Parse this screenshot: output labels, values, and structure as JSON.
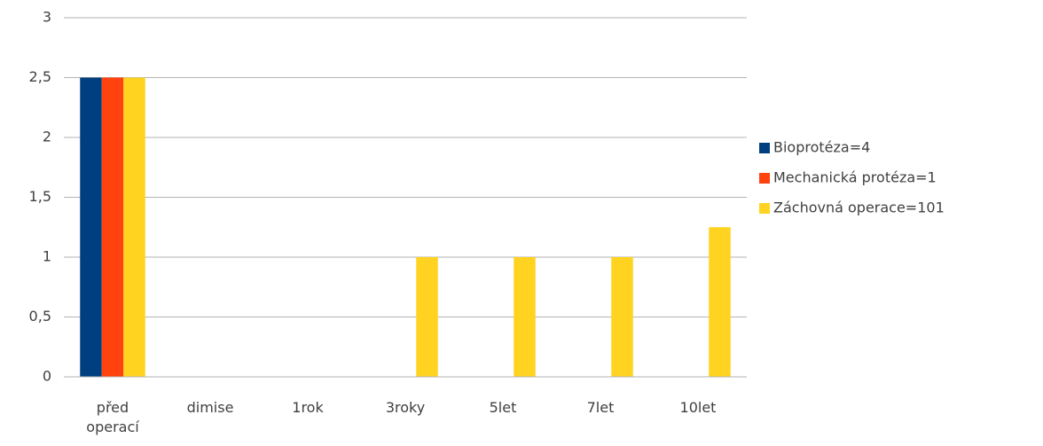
{
  "chart_data": {
    "type": "bar",
    "categories": [
      "před operací",
      "dimise",
      "1rok",
      "3roky",
      "5let",
      "7let",
      "10let"
    ],
    "series": [
      {
        "name": "Bioprotéza=4",
        "color": "#003f7f",
        "values": [
          2.5,
          0,
          0,
          0,
          0,
          0,
          0
        ]
      },
      {
        "name": "Mechanická protéza=1",
        "color": "#ff420e",
        "values": [
          2.5,
          0,
          0,
          0,
          0,
          0,
          0
        ]
      },
      {
        "name": "Záchovná operace=101",
        "color": "#ffd320",
        "values": [
          2.5,
          0,
          0,
          1,
          1,
          1,
          1.25
        ]
      }
    ],
    "ylim": [
      0,
      3
    ],
    "yticks": [
      0,
      {
        "value": 0.5,
        "label": "0,5"
      },
      1,
      {
        "value": 1.5,
        "label": "1,5"
      },
      2,
      {
        "value": 2.5,
        "label": "2,5"
      },
      3
    ],
    "grid": true,
    "legend": "right"
  }
}
